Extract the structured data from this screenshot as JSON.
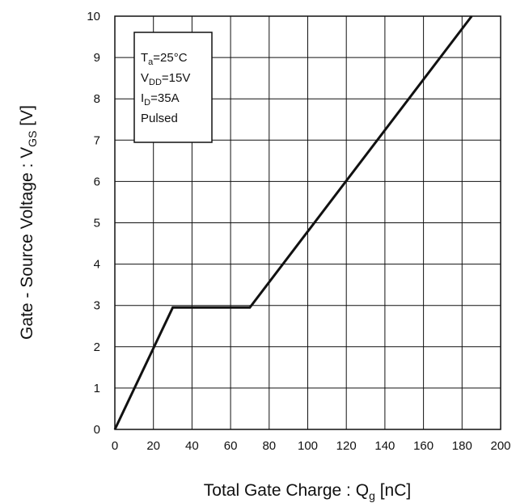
{
  "chart_data": {
    "type": "line",
    "xlabel": {
      "main": "Total Gate Charge : Q",
      "sub": "g",
      "unit": " [nC]"
    },
    "ylabel": {
      "main": "Gate - Source Voltage : V",
      "sub": "GS",
      "unit": " [V]"
    },
    "xlim": [
      0,
      200
    ],
    "ylim": [
      0,
      10
    ],
    "x_ticks": [
      "0",
      "20",
      "40",
      "60",
      "80",
      "100",
      "120",
      "140",
      "160",
      "180",
      "200"
    ],
    "y_ticks": [
      "0",
      "1",
      "2",
      "3",
      "4",
      "5",
      "6",
      "7",
      "8",
      "9",
      "10"
    ],
    "grid": true,
    "series": [
      {
        "color": "#111111",
        "points": [
          [
            0,
            0
          ],
          [
            30,
            2.95
          ],
          [
            70,
            2.95
          ],
          [
            185,
            10
          ]
        ]
      }
    ],
    "conditions": [
      {
        "main": "T",
        "sub": "a",
        "rest": "=25°C"
      },
      {
        "main": "V",
        "sub": "DD",
        "rest": "=15V"
      },
      {
        "main": "I",
        "sub": "D",
        "rest": "=35A"
      },
      {
        "main": "Pulsed",
        "sub": "",
        "rest": ""
      }
    ]
  }
}
